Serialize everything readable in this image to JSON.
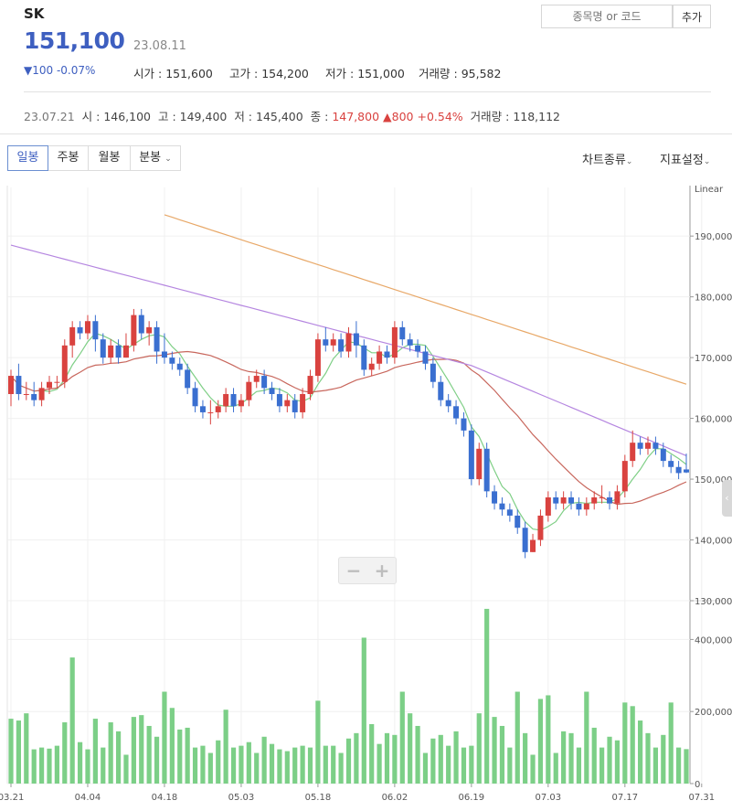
{
  "stock": {
    "name": "SK",
    "price": "151,100",
    "date": "23.08.11",
    "change": "▼100 -0.07%"
  },
  "stats": [
    {
      "label": "시가",
      "value": "151,600"
    },
    {
      "label": "고가",
      "value": "154,200"
    },
    {
      "label": "저가",
      "value": "151,000"
    },
    {
      "label": "거래량",
      "value": "95,582"
    }
  ],
  "search": {
    "placeholder": "종목명 or 코드",
    "add_label": "추가"
  },
  "prev_day": {
    "date": "23.07.21",
    "open_label": "시",
    "open": "146,100",
    "high_label": "고",
    "high": "149,400",
    "low_label": "저",
    "low": "145,400",
    "close_label": "종",
    "close": "147,800",
    "change": "▲800 +0.54%",
    "volume_label": "거래량",
    "volume": "118,112"
  },
  "period_tabs": [
    "일봉",
    "주봉",
    "월봉",
    "분봉"
  ],
  "right_controls": {
    "chart_type": "차트종류",
    "indicator": "지표설정"
  },
  "colors": {
    "up": "#d9423f",
    "down": "#3a6fd0",
    "ma5": "#7fcf86",
    "ma20": "#c8675d",
    "ma60": "#b586e0",
    "ma120": "#e8a868",
    "volume": "#7ccf87",
    "accent": "#3e5fc0"
  },
  "chart_data": {
    "type": "candlestick",
    "scale_label": "Linear",
    "price_ylim": [
      130000,
      198000
    ],
    "price_ticks": [
      "190,000",
      "180,000",
      "170,000",
      "160,000",
      "150,000",
      "140,000",
      "130,000"
    ],
    "volume_ticks": [
      "400,000",
      "200,000",
      "0"
    ],
    "x_tick_labels": [
      "03.21",
      "04.04",
      "04.18",
      "05.03",
      "05.18",
      "06.02",
      "06.19",
      "07.03",
      "07.17",
      "07.31"
    ],
    "x_tick_indices": [
      0,
      10,
      20,
      30,
      40,
      50,
      60,
      70,
      80,
      90
    ],
    "candles": [
      [
        164000,
        167000,
        162000,
        168000,
        180000
      ],
      [
        167000,
        164000,
        163000,
        169000,
        175000
      ],
      [
        164000,
        164000,
        163000,
        166000,
        195000
      ],
      [
        164000,
        163000,
        162000,
        166000,
        95000
      ],
      [
        163000,
        165000,
        162000,
        166000,
        100000
      ],
      [
        165000,
        166000,
        164000,
        167000,
        97000
      ],
      [
        166000,
        166000,
        165000,
        167000,
        105000
      ],
      [
        166000,
        172000,
        165000,
        173000,
        170000
      ],
      [
        172000,
        175000,
        170000,
        176000,
        350000
      ],
      [
        175000,
        174000,
        173000,
        176000,
        115000
      ],
      [
        174000,
        176000,
        173000,
        177000,
        95000
      ],
      [
        176000,
        173000,
        171000,
        177000,
        180000
      ],
      [
        173000,
        170000,
        169000,
        174000,
        100000
      ],
      [
        170000,
        172000,
        169000,
        173000,
        170000
      ],
      [
        172000,
        170000,
        169000,
        173000,
        145000
      ],
      [
        170000,
        172000,
        170000,
        174000,
        80000
      ],
      [
        172000,
        177000,
        171000,
        178000,
        185000
      ],
      [
        177000,
        174000,
        173000,
        178000,
        190000
      ],
      [
        174000,
        175000,
        172000,
        176000,
        160000
      ],
      [
        175000,
        171000,
        169000,
        176000,
        130000
      ],
      [
        171000,
        170000,
        169000,
        174000,
        255000
      ],
      [
        170000,
        169000,
        168000,
        171000,
        210000
      ],
      [
        169000,
        168000,
        167000,
        170000,
        150000
      ],
      [
        168000,
        165000,
        164000,
        169000,
        155000
      ],
      [
        165000,
        162000,
        161000,
        166000,
        100000
      ],
      [
        162000,
        161000,
        160000,
        163000,
        105000
      ],
      [
        161000,
        161000,
        159000,
        163000,
        85000
      ],
      [
        161000,
        162000,
        160000,
        163000,
        120000
      ],
      [
        162000,
        164000,
        161000,
        165000,
        205000
      ],
      [
        164000,
        162000,
        161000,
        165000,
        100000
      ],
      [
        162000,
        163000,
        161000,
        164000,
        105000
      ],
      [
        163000,
        166000,
        162000,
        167000,
        115000
      ],
      [
        166000,
        167000,
        165000,
        168000,
        85000
      ],
      [
        167000,
        165000,
        164000,
        168000,
        130000
      ],
      [
        165000,
        164000,
        163000,
        166000,
        110000
      ],
      [
        164000,
        162000,
        161000,
        165000,
        95000
      ],
      [
        162000,
        163000,
        161000,
        164000,
        90000
      ],
      [
        163000,
        161000,
        160000,
        164000,
        100000
      ],
      [
        161000,
        164000,
        160000,
        165000,
        105000
      ],
      [
        164000,
        167000,
        163000,
        168000,
        100000
      ],
      [
        167000,
        173000,
        166000,
        174000,
        230000
      ],
      [
        173000,
        172000,
        171000,
        175000,
        105000
      ],
      [
        172000,
        173000,
        171000,
        174000,
        105000
      ],
      [
        173000,
        171000,
        170000,
        174000,
        85000
      ],
      [
        171000,
        174000,
        170000,
        175000,
        125000
      ],
      [
        174000,
        172000,
        170000,
        176000,
        140000
      ],
      [
        172000,
        168000,
        167000,
        173000,
        405000
      ],
      [
        168000,
        169000,
        167000,
        170000,
        165000
      ],
      [
        169000,
        171000,
        168000,
        172000,
        110000
      ],
      [
        171000,
        170000,
        169000,
        172000,
        140000
      ],
      [
        170000,
        175000,
        169000,
        176000,
        135000
      ],
      [
        175000,
        173000,
        172000,
        176000,
        255000
      ],
      [
        173000,
        172000,
        171000,
        174000,
        195000
      ],
      [
        172000,
        171000,
        170000,
        173000,
        160000
      ],
      [
        171000,
        169000,
        168000,
        172000,
        85000
      ],
      [
        169000,
        166000,
        165000,
        170000,
        125000
      ],
      [
        166000,
        163000,
        162000,
        167000,
        135000
      ],
      [
        163000,
        162000,
        161000,
        164000,
        105000
      ],
      [
        162000,
        160000,
        159000,
        163000,
        145000
      ],
      [
        160000,
        158000,
        157000,
        161000,
        100000
      ],
      [
        158000,
        150000,
        149000,
        159000,
        105000
      ],
      [
        150000,
        155000,
        149000,
        156000,
        195000
      ],
      [
        155000,
        148000,
        147000,
        156000,
        485000
      ],
      [
        148000,
        146000,
        145000,
        149000,
        185000
      ],
      [
        146000,
        145000,
        144000,
        147000,
        160000
      ],
      [
        145000,
        144000,
        143000,
        146000,
        100000
      ],
      [
        144000,
        142000,
        141000,
        145000,
        255000
      ],
      [
        142000,
        138000,
        137000,
        143000,
        140000
      ],
      [
        138000,
        140000,
        138000,
        141000,
        80000
      ],
      [
        140000,
        144000,
        139000,
        145000,
        235000
      ],
      [
        144000,
        147000,
        143000,
        148000,
        245000
      ],
      [
        147000,
        146000,
        145000,
        148000,
        85000
      ],
      [
        146000,
        147000,
        145000,
        148000,
        145000
      ],
      [
        147000,
        146000,
        145000,
        148000,
        140000
      ],
      [
        146000,
        145000,
        144000,
        147000,
        100000
      ],
      [
        145000,
        146000,
        144000,
        147000,
        255000
      ],
      [
        146000,
        147000,
        145000,
        148000,
        155000
      ],
      [
        147000,
        147000,
        146000,
        149000,
        100000
      ],
      [
        147000,
        146000,
        145000,
        148000,
        130000
      ],
      [
        146000,
        148000,
        145000,
        149000,
        120000
      ],
      [
        148000,
        153000,
        147000,
        154000,
        225000
      ],
      [
        153000,
        156000,
        152000,
        158000,
        215000
      ],
      [
        156000,
        155000,
        154000,
        157000,
        175000
      ],
      [
        155000,
        156000,
        154000,
        157000,
        140000
      ],
      [
        156000,
        155000,
        154000,
        157000,
        100000
      ],
      [
        155000,
        153000,
        152000,
        156000,
        135000
      ],
      [
        153000,
        152000,
        151000,
        154000,
        225000
      ],
      [
        152000,
        151000,
        150000,
        153000,
        100000
      ],
      [
        151600,
        151100,
        151000,
        154200,
        95582
      ]
    ],
    "ma5_label": "",
    "series_names": []
  }
}
